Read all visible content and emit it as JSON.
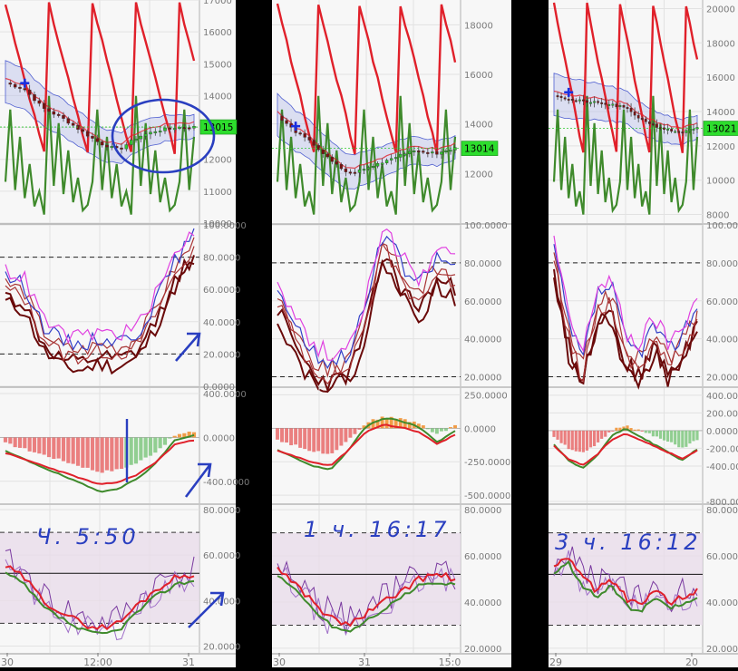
{
  "colors": {
    "page": "#000000",
    "panel": "#f7f7f7",
    "grid": "#e2e2e2",
    "axis_text": "#7a7a7a",
    "price_red": "#e0202a",
    "price_green": "#3f8a2c",
    "candle_up": "#2ec72e",
    "candle_down": "#7a1010",
    "band_fill": "#b7bfe8",
    "band_line": "#4f5fd0",
    "stoch_dark": "#6a0a0a",
    "stoch_mid": "#a83434",
    "stoch_blue": "#3340c8",
    "stoch_pink": "#e040e0",
    "hist_pos": "#f08c28",
    "hist_neg": "#e86a6a",
    "hist_green": "#7fc77f",
    "rsi_zone": "#e8dcea",
    "rsi_purple": "#7a3aa0",
    "annotation": "#2a3fc0",
    "price_label_bg": "#2ddd2d"
  },
  "chart_data": [
    {
      "type": "candlestick",
      "panel": "price",
      "tile": 1,
      "yticks": [
        "17000",
        "16000",
        "15000",
        "14000",
        "13000",
        "12000",
        "11000",
        "10000"
      ],
      "ylim": [
        10000,
        17000
      ],
      "last_price": "13015",
      "xtick_labels": [
        "30",
        "12:00",
        "31"
      ],
      "grid": true
    },
    {
      "type": "line",
      "panel": "stochastic",
      "tile": 1,
      "yticks": [
        "100.0000",
        "80.0000",
        "60.0000",
        "40.0000",
        "20.0000",
        "0.0000"
      ],
      "ylim": [
        0,
        100
      ],
      "levels": [
        80,
        20
      ],
      "grid": true
    },
    {
      "type": "bar",
      "panel": "macd",
      "tile": 1,
      "yticks": [
        "400.0000",
        "0.0000",
        "-400.0000"
      ],
      "ylim": [
        -600,
        450
      ],
      "grid": true
    },
    {
      "type": "line",
      "panel": "rsi",
      "tile": 1,
      "yticks": [
        "80.0000",
        "60.0000",
        "40.0000",
        "20.0000"
      ],
      "ylim": [
        17,
        82
      ],
      "levels": [
        70,
        30
      ],
      "grid": true
    },
    {
      "type": "candlestick",
      "panel": "price",
      "tile": 2,
      "yticks": [
        "18000",
        "16000",
        "14000",
        "12000"
      ],
      "ylim": [
        10000,
        19000
      ],
      "last_price": "13014",
      "xtick_labels": [
        "30",
        "31",
        "15:0"
      ],
      "grid": true
    },
    {
      "type": "line",
      "panel": "stochastic",
      "tile": 2,
      "yticks": [
        "100.0000",
        "80.0000",
        "60.0000",
        "40.0000",
        "20.0000"
      ],
      "ylim": [
        15,
        100
      ],
      "levels": [
        80,
        20
      ],
      "grid": true
    },
    {
      "type": "bar",
      "panel": "macd",
      "tile": 2,
      "yticks": [
        "250.0000",
        "0.0000",
        "-250.0000",
        "-500.0000"
      ],
      "ylim": [
        -560,
        300
      ],
      "grid": true
    },
    {
      "type": "line",
      "panel": "rsi",
      "tile": 2,
      "yticks": [
        "80.0000",
        "60.0000",
        "40.0000",
        "20.0000"
      ],
      "ylim": [
        18,
        82
      ],
      "levels": [
        70,
        30
      ],
      "grid": true
    },
    {
      "type": "candlestick",
      "panel": "price",
      "tile": 3,
      "yticks": [
        "20000",
        "18000",
        "16000",
        "14000",
        "12000",
        "10000",
        "8000"
      ],
      "ylim": [
        7500,
        20500
      ],
      "last_price": "13021",
      "xtick_labels": [
        "29",
        "20"
      ],
      "grid": true
    },
    {
      "type": "line",
      "panel": "stochastic",
      "tile": 3,
      "yticks": [
        "100.0000",
        "80.0000",
        "60.0000",
        "40.0000",
        "20.0000"
      ],
      "ylim": [
        15,
        100
      ],
      "levels": [
        80,
        20
      ],
      "grid": true
    },
    {
      "type": "bar",
      "panel": "macd",
      "tile": 3,
      "yticks": [
        "400.0000",
        "200.0000",
        "0.0000",
        "-200.0000",
        "-400.0000",
        "-800.0000"
      ],
      "ylim": [
        -820,
        480
      ],
      "grid": true
    },
    {
      "type": "line",
      "panel": "rsi",
      "tile": 3,
      "yticks": [
        "80.0000",
        "60.0000",
        "40.0000",
        "20.0000"
      ],
      "ylim": [
        18,
        82
      ],
      "levels": [
        70,
        30
      ],
      "grid": true
    }
  ],
  "annotations": {
    "tile1": "Ч. 5:50",
    "tile2": "1 ч. 16:17",
    "tile3": "3 ч. 16:12"
  }
}
